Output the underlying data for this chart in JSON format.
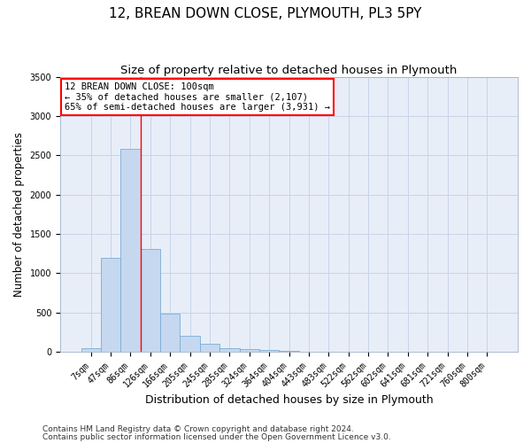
{
  "title": "12, BREAN DOWN CLOSE, PLYMOUTH, PL3 5PY",
  "subtitle": "Size of property relative to detached houses in Plymouth",
  "xlabel": "Distribution of detached houses by size in Plymouth",
  "ylabel": "Number of detached properties",
  "categories": [
    "7sqm",
    "47sqm",
    "86sqm",
    "126sqm",
    "166sqm",
    "205sqm",
    "245sqm",
    "285sqm",
    "324sqm",
    "364sqm",
    "404sqm",
    "443sqm",
    "483sqm",
    "522sqm",
    "562sqm",
    "602sqm",
    "641sqm",
    "681sqm",
    "721sqm",
    "760sqm",
    "800sqm"
  ],
  "values": [
    50,
    1200,
    2580,
    1310,
    490,
    200,
    105,
    50,
    40,
    20,
    10,
    5,
    3,
    2,
    1,
    1,
    1,
    0,
    0,
    0,
    0
  ],
  "bar_color": "#c5d8f0",
  "bar_edge_color": "#7badd4",
  "red_line_x": 2.5,
  "annotation_text": "12 BREAN DOWN CLOSE: 100sqm\n← 35% of detached houses are smaller (2,107)\n65% of semi-detached houses are larger (3,931) →",
  "annotation_box_color": "white",
  "annotation_box_edge": "red",
  "ylim": [
    0,
    3500
  ],
  "yticks": [
    0,
    500,
    1000,
    1500,
    2000,
    2500,
    3000,
    3500
  ],
  "grid_color": "#c8d4e8",
  "background_color": "#e8eef8",
  "footer_line1": "Contains HM Land Registry data © Crown copyright and database right 2024.",
  "footer_line2": "Contains public sector information licensed under the Open Government Licence v3.0.",
  "title_fontsize": 11,
  "subtitle_fontsize": 9.5,
  "xlabel_fontsize": 9,
  "ylabel_fontsize": 8.5,
  "tick_fontsize": 7,
  "footer_fontsize": 6.5,
  "annot_fontsize": 7.5
}
